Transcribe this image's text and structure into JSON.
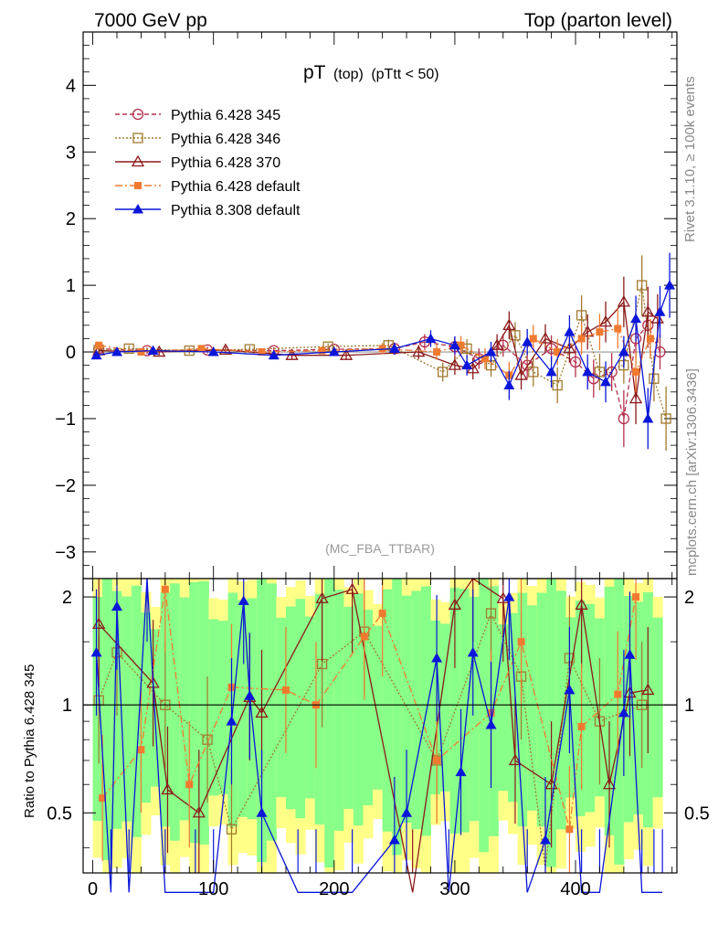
{
  "header": {
    "left": "7000 GeV pp",
    "right": "Top (parton level)"
  },
  "title": {
    "main": "pT",
    "sub1": "(top)",
    "sub2": "(pTtt < 50)"
  },
  "side_labels": {
    "rivet": "Rivet 3.1.10, ≥ 100k events",
    "mcplots": "mcplots.cern.ch [arXiv:1306.3436]"
  },
  "watermark": "(MC_FBA_TTBAR)",
  "ratio_ylabel": "Ratio to Pythia 6.428 345",
  "colors": {
    "p345": "#b5304e",
    "p346": "#a07a30",
    "p370": "#8b1a1a",
    "p6def": "#f07a30",
    "p8def": "#0a16d8",
    "band_yellow": "#ffff88",
    "band_green": "#88ff88"
  },
  "chart_data": [
    {
      "type": "scatter",
      "panel": "main",
      "title": "pT (top) (pTtt < 50)",
      "xlim": [
        -8,
        484
      ],
      "ylim": [
        -3.4,
        4.8
      ],
      "xticks": [
        0,
        100,
        200,
        300,
        400
      ],
      "yticks": [
        -3,
        -2,
        -1,
        0,
        1,
        2,
        3,
        4
      ],
      "legend_position": "top-left",
      "series": [
        {
          "name": "Pythia 6.428 345",
          "marker": "open-circle",
          "line": "dashed",
          "x": [
            5,
            45,
            95,
            150,
            200,
            250,
            275,
            300,
            320,
            340,
            360,
            380,
            400,
            415,
            430,
            440,
            450,
            460,
            470
          ],
          "y": [
            0.05,
            0.02,
            0.03,
            0.02,
            0.04,
            0.05,
            0.15,
            0.08,
            -0.1,
            0.1,
            -0.2,
            0.05,
            -0.15,
            -0.4,
            -0.3,
            -1.0,
            0.2,
            0.4,
            0.0
          ]
        },
        {
          "name": "Pythia 6.428 346",
          "marker": "open-square",
          "line": "dotted",
          "x": [
            5,
            30,
            80,
            130,
            195,
            245,
            290,
            310,
            330,
            350,
            365,
            385,
            405,
            420,
            440,
            455,
            465,
            475
          ],
          "y": [
            0.03,
            0.05,
            0.02,
            0.04,
            0.08,
            0.1,
            -0.3,
            0.05,
            -0.2,
            0.25,
            -0.3,
            -0.5,
            0.55,
            -0.3,
            -0.2,
            1.0,
            -0.4,
            -1.0
          ]
        },
        {
          "name": "Pythia 6.428 370",
          "marker": "open-triangle",
          "line": "solid",
          "x": [
            5,
            55,
            110,
            165,
            210,
            270,
            300,
            315,
            335,
            345,
            355,
            375,
            395,
            410,
            425,
            440,
            450,
            460,
            468
          ],
          "y": [
            0.02,
            0.0,
            0.03,
            -0.05,
            -0.05,
            0.0,
            -0.2,
            -0.25,
            0.1,
            0.4,
            -0.35,
            0.2,
            0.05,
            0.3,
            0.45,
            0.75,
            -0.7,
            0.6,
            0.5
          ]
        },
        {
          "name": "Pythia 6.428 default",
          "marker": "filled-square",
          "line": "dashdot",
          "x": [
            5,
            40,
            90,
            140,
            190,
            240,
            285,
            305,
            325,
            345,
            365,
            385,
            405,
            420,
            435,
            450,
            462
          ],
          "y": [
            0.1,
            0.0,
            0.05,
            0.0,
            0.02,
            0.05,
            0.0,
            0.1,
            -0.1,
            -0.35,
            0.2,
            0.0,
            0.2,
            0.3,
            0.35,
            -0.3,
            0.2
          ]
        },
        {
          "name": "Pythia 8.308 default",
          "marker": "filled-triangle",
          "line": "solid",
          "x": [
            3,
            20,
            50,
            100,
            150,
            200,
            250,
            280,
            300,
            310,
            330,
            345,
            360,
            380,
            395,
            410,
            425,
            440,
            450,
            460,
            470,
            478
          ],
          "y": [
            -0.05,
            0.0,
            0.02,
            0.0,
            -0.05,
            0.0,
            0.05,
            0.2,
            0.1,
            -0.2,
            0.0,
            -0.5,
            0.15,
            -0.3,
            0.3,
            -0.3,
            -0.45,
            0.0,
            0.5,
            -1.0,
            0.6,
            1.0
          ]
        }
      ]
    },
    {
      "type": "scatter",
      "panel": "ratio",
      "ylabel": "Ratio to Pythia 6.428 345",
      "xlim": [
        -8,
        484
      ],
      "ylim": [
        0.34,
        2.25
      ],
      "xticks": [
        0,
        100,
        200,
        300,
        400
      ],
      "yticks": [
        0.5,
        1,
        2
      ],
      "reference": 1,
      "series": [
        {
          "name": "Pythia 6.428 346",
          "x": [
            5,
            20,
            60,
            95,
            115,
            190,
            225,
            285,
            330,
            355,
            375,
            395,
            420,
            455
          ],
          "y": [
            1.03,
            1.4,
            1.0,
            0.8,
            0.45,
            1.3,
            1.6,
            0.7,
            1.8,
            1.2,
            0.35,
            1.35,
            0.9,
            1.0
          ]
        },
        {
          "name": "Pythia 6.428 370",
          "x": [
            5,
            50,
            62,
            88,
            130,
            140,
            190,
            215,
            265,
            300,
            315,
            340,
            350,
            380,
            405,
            428,
            445,
            460
          ],
          "y": [
            1.68,
            1.15,
            0.58,
            0.5,
            1.05,
            0.95,
            1.98,
            2.1,
            0.3,
            1.9,
            2.25,
            1.98,
            0.7,
            0.6,
            1.9,
            0.6,
            1.08,
            1.1
          ]
        },
        {
          "name": "Pythia 6.428 default",
          "x": [
            8,
            40,
            60,
            80,
            115,
            160,
            185,
            225,
            240,
            285,
            330,
            355,
            395,
            405,
            435,
            450
          ],
          "y": [
            0.55,
            0.75,
            2.1,
            0.6,
            1.12,
            1.1,
            1.0,
            1.55,
            1.8,
            0.7,
            0.95,
            1.5,
            0.45,
            0.87,
            1.07,
            2.0
          ]
        },
        {
          "name": "Pythia 8.308 default",
          "x": [
            3,
            15,
            20,
            30,
            45,
            60,
            85,
            100,
            115,
            125,
            130,
            140,
            170,
            185,
            215,
            250,
            260,
            285,
            295,
            305,
            315,
            330,
            345,
            360,
            375,
            395,
            405,
            420,
            440,
            445,
            455,
            465,
            472
          ],
          "y": [
            1.4,
            0.3,
            1.88,
            0.3,
            2.25,
            0.3,
            0.3,
            0.3,
            0.9,
            1.95,
            1.06,
            0.5,
            0.3,
            0.3,
            0.3,
            0.42,
            0.5,
            1.35,
            0.3,
            0.65,
            1.4,
            0.88,
            2.0,
            0.3,
            0.42,
            1.1,
            0.3,
            0.3,
            0.95,
            1.38,
            0.3,
            0.3,
            0.3
          ]
        }
      ]
    }
  ]
}
